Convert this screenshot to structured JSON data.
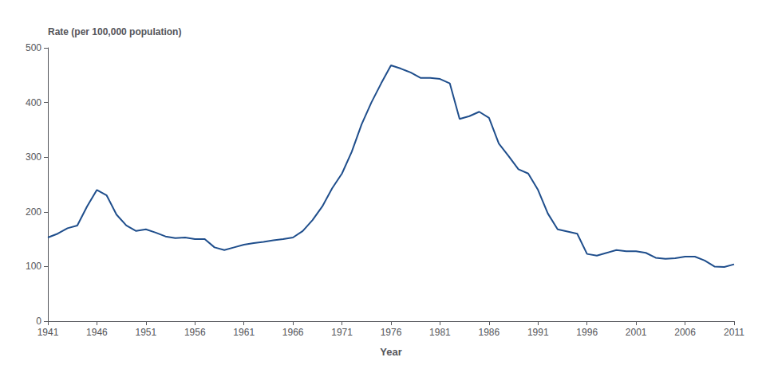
{
  "chart_data": {
    "type": "line",
    "xlabel": "Year",
    "ylabel": "Rate (per 100,000 population)",
    "color": "#1F4E8C",
    "x": [
      1941,
      1942,
      1943,
      1944,
      1945,
      1946,
      1947,
      1948,
      1949,
      1950,
      1951,
      1952,
      1953,
      1954,
      1955,
      1956,
      1957,
      1958,
      1959,
      1960,
      1961,
      1962,
      1963,
      1964,
      1965,
      1966,
      1967,
      1968,
      1969,
      1970,
      1971,
      1972,
      1973,
      1974,
      1975,
      1976,
      1977,
      1978,
      1979,
      1980,
      1981,
      1982,
      1983,
      1984,
      1985,
      1986,
      1987,
      1988,
      1989,
      1990,
      1991,
      1992,
      1993,
      1994,
      1995,
      1996,
      1997,
      1998,
      1999,
      2000,
      2001,
      2002,
      2003,
      2004,
      2005,
      2006,
      2007,
      2008,
      2009,
      2010,
      2011
    ],
    "values": [
      153,
      160,
      170,
      175,
      210,
      240,
      230,
      195,
      175,
      165,
      168,
      162,
      155,
      152,
      153,
      150,
      150,
      135,
      130,
      135,
      140,
      143,
      145,
      148,
      150,
      153,
      165,
      185,
      210,
      243,
      270,
      310,
      360,
      400,
      435,
      468,
      462,
      455,
      445,
      445,
      443,
      435,
      370,
      375,
      383,
      372,
      325,
      302,
      278,
      270,
      240,
      197,
      168,
      164,
      160,
      123,
      120,
      125,
      130,
      128,
      128,
      125,
      116,
      114,
      115,
      118,
      118,
      111,
      100,
      99,
      104
    ],
    "xlim": [
      1941,
      2011
    ],
    "xticks": [
      1941,
      1946,
      1951,
      1956,
      1961,
      1966,
      1971,
      1976,
      1981,
      1986,
      1991,
      1996,
      2001,
      2006,
      2011
    ],
    "ylim": [
      0,
      500
    ],
    "yticks": [
      0,
      100,
      200,
      300,
      400,
      500
    ],
    "grid": false
  }
}
